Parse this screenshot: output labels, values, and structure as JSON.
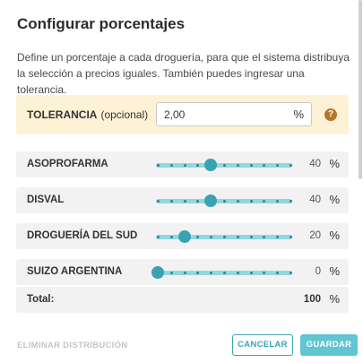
{
  "dialog": {
    "title": "Configurar porcentajes",
    "description": "Define un porcentaje a cada droguería, para que el sistema distribuya la selección a precios iguales. También puedes ingresar una tolerancia."
  },
  "tolerance": {
    "label": "TOLERANCIA",
    "optional": "(opcional)",
    "value": "2,00",
    "unit": "%",
    "help_icon": "question-circle-icon",
    "help_glyph": "?"
  },
  "distributors": [
    {
      "name": "ASOPROFARMA",
      "value": 40,
      "percent_label": "40",
      "unit": "%"
    },
    {
      "name": "DISVAL",
      "value": 40,
      "percent_label": "40",
      "unit": "%"
    },
    {
      "name": "DROGUERÍA DEL SUD",
      "value": 20,
      "percent_label": "20",
      "unit": "%"
    },
    {
      "name": "SUIZO ARGENTINA",
      "value": 0,
      "percent_label": "0",
      "unit": "%"
    }
  ],
  "total": {
    "label": "Total:",
    "value": "100",
    "unit": "%"
  },
  "footer": {
    "remove_label": "ELIMINAR DISTRIBUCIÓN",
    "cancel_label": "CANCELAR",
    "save_label": "GUARDAR"
  },
  "colors": {
    "accent": "#3aa3b3",
    "track": "#8fd8e0",
    "save_button": "#5fc6d2",
    "tolerance_bg": "#fdf2d6",
    "help_icon": "#b5772a"
  }
}
